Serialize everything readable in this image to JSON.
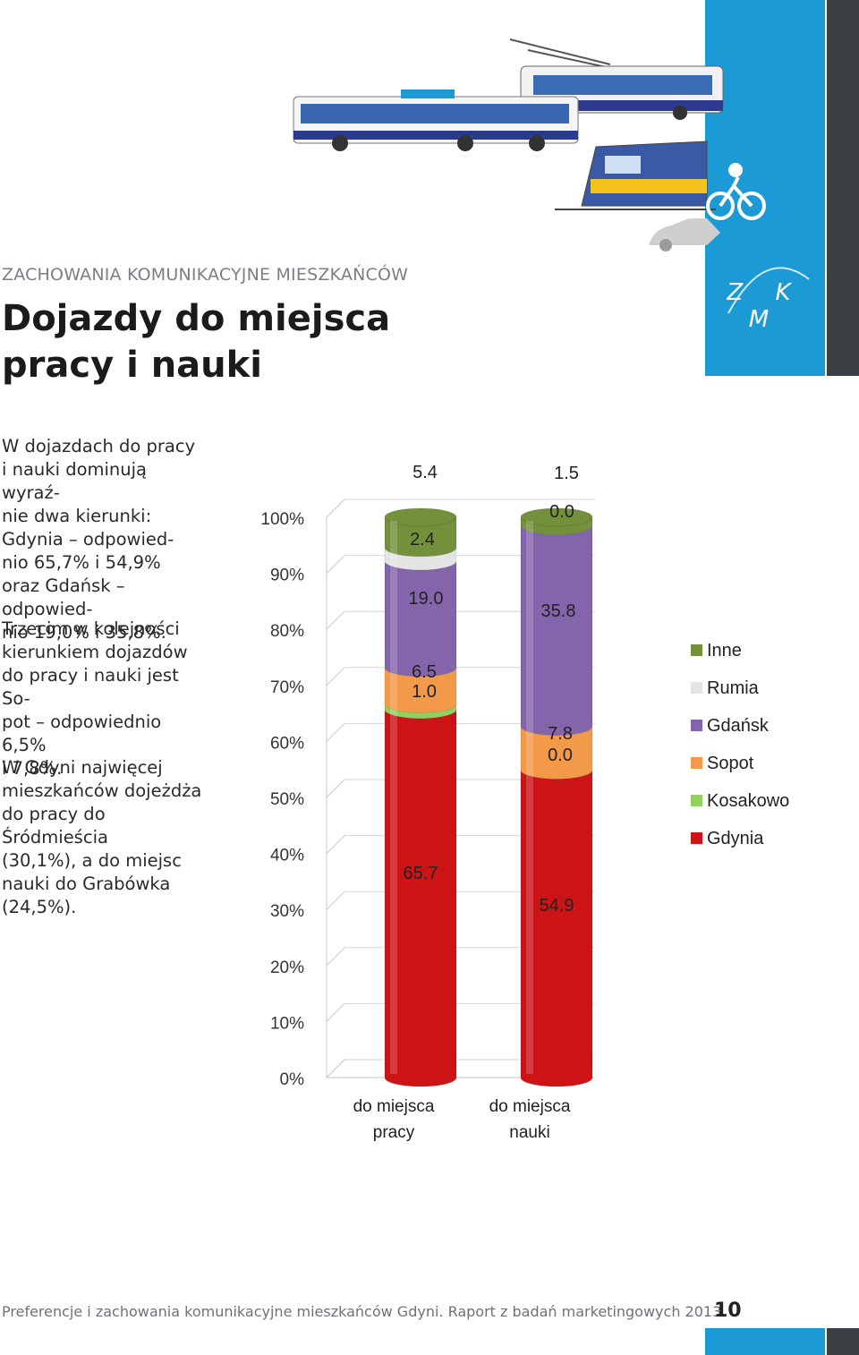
{
  "header": {
    "section": "ZACHOWANIA KOMUNIKACYJNE MIESZKAŃCÓW",
    "title_line1": "Dojazdy do miejsca",
    "title_line2": "pracy i nauki",
    "logo": "Z K M"
  },
  "paragraphs": [
    [
      "W dojazdach do pracy",
      "i nauki dominują wyraź-",
      "nie dwa kierunki:",
      "Gdynia – odpowied-",
      "nio 65,7% i 54,9%",
      "oraz Gdańsk – odpowied-",
      "nio 19,0% i 35,8%."
    ],
    [
      "Trzecim w kolejności",
      "kierunkiem dojazdów",
      "do pracy i nauki jest So-",
      "pot – odpowiednio 6,5%",
      "i 7,8%."
    ],
    [
      "W Gdyni najwięcej",
      "mieszkańców dojeżdża",
      "do pracy do Śródmieścia",
      "(30,1%), a do miejsc",
      "nauki do Grabówka",
      "(24,5%)."
    ]
  ],
  "chart_data": {
    "type": "bar",
    "stacked": true,
    "categories": [
      "do miejsca pracy",
      "do miejsca nauki"
    ],
    "category_lines": [
      [
        "do miejsca",
        "pracy"
      ],
      [
        "do miejsca",
        "nauki"
      ]
    ],
    "series": [
      {
        "name": "Gdynia",
        "values": [
          65.7,
          54.9
        ],
        "color": "#cc1417",
        "labels": [
          "65.7",
          "54.9"
        ]
      },
      {
        "name": "Kosakowo",
        "values": [
          1.0,
          0.0
        ],
        "color": "#8fd260",
        "labels": [
          "1.0",
          "0.0"
        ]
      },
      {
        "name": "Sopot",
        "values": [
          6.5,
          7.8
        ],
        "color": "#f39a4a",
        "labels": [
          "6.5",
          "7.8"
        ]
      },
      {
        "name": "Gdańsk",
        "values": [
          19.0,
          35.8
        ],
        "color": "#8465ac",
        "labels": [
          "19.0",
          "35.8"
        ]
      },
      {
        "name": "Rumia",
        "values": [
          2.4,
          0.0
        ],
        "color": "#e4e4e4",
        "labels": [
          "2.4",
          "0.0"
        ]
      },
      {
        "name": "Inne",
        "values": [
          5.4,
          1.5
        ],
        "color": "#73913a",
        "labels": [
          "5.4",
          "1.5"
        ]
      }
    ],
    "legend_order": [
      "Inne",
      "Rumia",
      "Gdańsk",
      "Sopot",
      "Kosakowo",
      "Gdynia"
    ],
    "y_ticks": [
      "0%",
      "10%",
      "20%",
      "30%",
      "40%",
      "50%",
      "60%",
      "70%",
      "80%",
      "90%",
      "100%"
    ],
    "ylim": [
      0,
      100
    ],
    "legend_position": "right",
    "grid": true
  },
  "footer": {
    "text": "Preferencje i zachowania komunikacyjne mieszkańców Gdyni. Raport z badań marketingowych 2013",
    "page": "10"
  },
  "colors": {
    "brand_blue": "#1b9ad6",
    "dark": "#3b3f43"
  },
  "icons": [
    "bus-icon",
    "trolleybus-icon",
    "train-icon",
    "cyclist-icon",
    "car-icon"
  ]
}
